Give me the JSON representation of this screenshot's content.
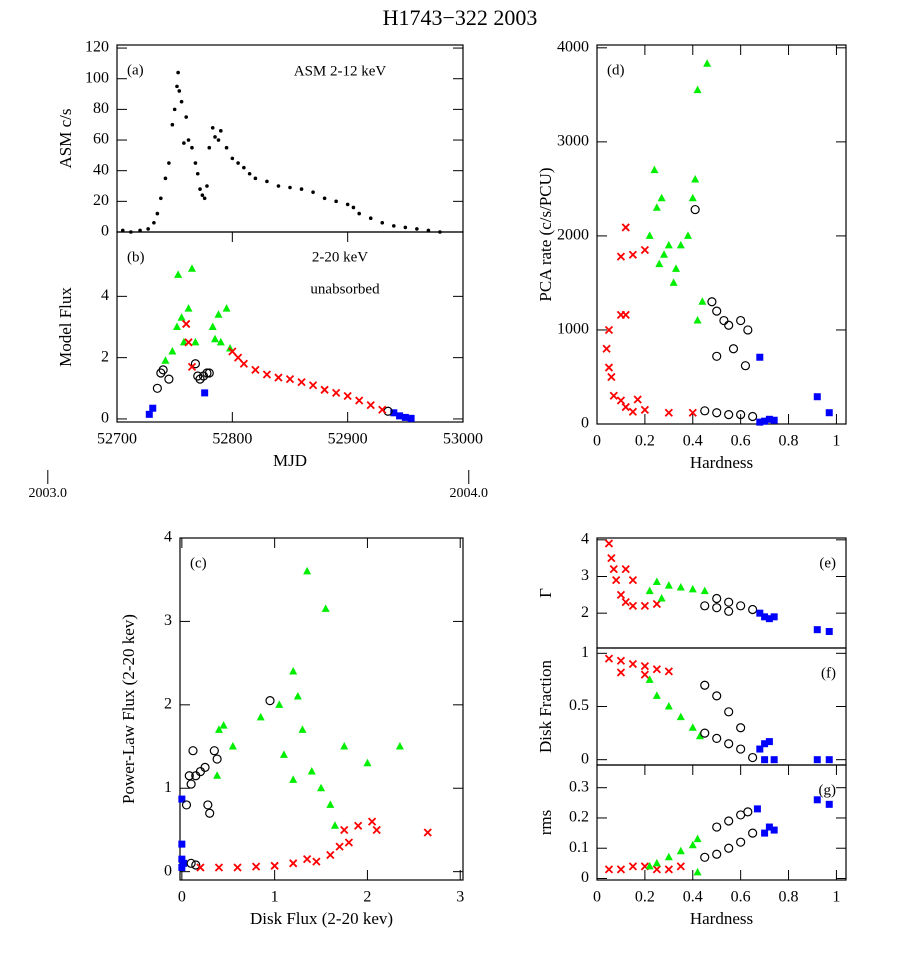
{
  "title": "H1743−322 2003",
  "chart_data": [
    {
      "type": "scatter",
      "panel_label": "(a)",
      "annotations": [
        "ASM 2-12 keV"
      ],
      "ylabel": "ASM c/s",
      "xlim": [
        52700,
        53000
      ],
      "ylim": [
        0,
        122
      ],
      "yticks": [
        0,
        20,
        40,
        60,
        80,
        100,
        120
      ],
      "series": [
        {
          "color": "#000000",
          "marker": "dot",
          "x": [
            52705,
            52712,
            52720,
            52727,
            52732,
            52735,
            52738,
            52742,
            52745,
            52748,
            52750,
            52752,
            52753,
            52754,
            52756,
            52758,
            52760,
            52762,
            52765,
            52768,
            52770,
            52772,
            52774,
            52776,
            52778,
            52780,
            52783,
            52785,
            52788,
            52790,
            52795,
            52800,
            52805,
            52810,
            52815,
            52820,
            52830,
            52840,
            52850,
            52860,
            52870,
            52880,
            52890,
            52900,
            52905,
            52910,
            52920,
            52930,
            52940,
            52950,
            52960,
            52970,
            52980
          ],
          "values": [
            1,
            0,
            1,
            2,
            6,
            12,
            22,
            35,
            45,
            70,
            80,
            95,
            104,
            92,
            85,
            58,
            75,
            60,
            55,
            45,
            38,
            28,
            24,
            22,
            30,
            55,
            68,
            62,
            60,
            66,
            55,
            48,
            45,
            42,
            38,
            35,
            33,
            30,
            29,
            28,
            26,
            22,
            20,
            18,
            16,
            12,
            9,
            6,
            4,
            3,
            2,
            1,
            0
          ]
        }
      ]
    },
    {
      "type": "scatter",
      "panel_label": "(b)",
      "annotations": [
        "2-20 keV",
        "unabsorbed"
      ],
      "ylabel": "Model Flux",
      "xlabel": "MJD",
      "xlim": [
        52700,
        53000
      ],
      "ylim": [
        -0.1,
        6.1
      ],
      "xticks": [
        52700,
        52800,
        52900,
        53000
      ],
      "yticks": [
        0,
        2,
        4
      ],
      "year_ticks": [
        {
          "value": 52640,
          "label": "2003.0"
        },
        {
          "value": 53005,
          "label": "2004.0"
        }
      ],
      "series": [
        {
          "color": "#0000ff",
          "marker": "square",
          "x": [
            52728,
            52731,
            52776,
            52940,
            52945,
            52950,
            52955
          ],
          "values": [
            0.15,
            0.35,
            0.85,
            0.2,
            0.1,
            0.05,
            0.02
          ]
        },
        {
          "color": "#000000",
          "marker": "circle",
          "x": [
            52735,
            52738,
            52740,
            52745,
            52768,
            52770,
            52772,
            52775,
            52778,
            52780,
            52935
          ],
          "values": [
            1.0,
            1.5,
            1.6,
            1.3,
            1.8,
            1.4,
            1.3,
            1.4,
            1.5,
            1.5,
            0.25
          ]
        },
        {
          "color": "#00ee00",
          "marker": "triangle",
          "x": [
            52742,
            52748,
            52752,
            52753,
            52756,
            52758,
            52762,
            52765,
            52768,
            52783,
            52785,
            52788,
            52790,
            52795,
            52798
          ],
          "values": [
            1.9,
            2.2,
            3.0,
            4.7,
            3.3,
            2.5,
            3.6,
            4.9,
            2.5,
            3.0,
            2.6,
            3.4,
            2.5,
            3.6,
            2.3
          ]
        },
        {
          "color": "#ff0000",
          "marker": "cross",
          "x": [
            52760,
            52762,
            52765,
            52800,
            52805,
            52810,
            52820,
            52830,
            52840,
            52850,
            52860,
            52870,
            52880,
            52890,
            52900,
            52910,
            52920,
            52930
          ],
          "values": [
            3.1,
            2.5,
            1.7,
            2.2,
            2.0,
            1.8,
            1.6,
            1.45,
            1.35,
            1.3,
            1.2,
            1.1,
            0.95,
            0.85,
            0.75,
            0.6,
            0.45,
            0.3
          ]
        }
      ]
    },
    {
      "type": "scatter",
      "panel_label": "(c)",
      "annotations": [],
      "ylabel": "Power-Law Flux (2-20 kev)",
      "xlabel": "Disk Flux (2-20 kev)",
      "xlim": [
        -0.02,
        3.03
      ],
      "ylim": [
        -0.1,
        4
      ],
      "xticks": [
        0,
        1,
        2,
        3
      ],
      "yticks": [
        0,
        1,
        2,
        3,
        4
      ],
      "series": [
        {
          "color": "#0000ff",
          "marker": "square",
          "x": [
            0,
            0,
            0,
            0,
            0.02
          ],
          "values": [
            0.87,
            0.33,
            0.15,
            0.05,
            0.1
          ]
        },
        {
          "color": "#000000",
          "marker": "circle",
          "x": [
            0.05,
            0.08,
            0.1,
            0.12,
            0.15,
            0.2,
            0.25,
            0.28,
            0.3,
            0.35,
            0.38,
            0.95,
            0.1,
            0.15
          ],
          "values": [
            0.8,
            1.15,
            1.05,
            1.45,
            1.15,
            1.2,
            1.25,
            0.8,
            0.7,
            1.45,
            1.35,
            2.05,
            0.1,
            0.08
          ]
        },
        {
          "color": "#00ee00",
          "marker": "triangle",
          "x": [
            0.38,
            0.4,
            0.45,
            0.55,
            0.85,
            1.05,
            1.2,
            1.25,
            1.35,
            1.55,
            1.3,
            1.4,
            1.5,
            1.6,
            1.65,
            1.75,
            2.0,
            2.35,
            1.1,
            1.2
          ],
          "values": [
            1.15,
            1.7,
            1.75,
            1.5,
            1.85,
            2.0,
            2.4,
            2.1,
            3.6,
            3.15,
            1.7,
            1.2,
            1.0,
            0.8,
            0.55,
            1.5,
            1.3,
            1.5,
            1.4,
            1.1
          ]
        },
        {
          "color": "#ff0000",
          "marker": "cross",
          "x": [
            0.2,
            0.4,
            0.6,
            0.8,
            1.0,
            1.2,
            1.35,
            1.45,
            1.6,
            1.7,
            1.75,
            1.9,
            2.05,
            2.1,
            2.65,
            1.8
          ],
          "values": [
            0.05,
            0.05,
            0.05,
            0.06,
            0.07,
            0.1,
            0.15,
            0.12,
            0.2,
            0.3,
            0.5,
            0.55,
            0.6,
            0.5,
            0.47,
            0.35
          ]
        }
      ]
    },
    {
      "type": "scatter",
      "panel_label": "(d)",
      "annotations": [],
      "ylabel": "PCA rate (c/s/PCU)",
      "xlabel": "Hardness",
      "xlim": [
        0,
        1.04
      ],
      "ylim": [
        0,
        4030
      ],
      "xticks": [
        0,
        0.2,
        0.4,
        0.6,
        0.8,
        1
      ],
      "yticks": [
        0,
        1000,
        2000,
        3000,
        4000
      ],
      "series": [
        {
          "color": "#ff0000",
          "marker": "cross",
          "x": [
            0.12,
            0.1,
            0.15,
            0.2,
            0.1,
            0.12,
            0.05,
            0.04,
            0.05,
            0.06,
            0.07,
            0.1,
            0.12,
            0.2,
            0.3,
            0.4,
            0.17,
            0.15
          ],
          "values": [
            2090,
            1780,
            1800,
            1850,
            1160,
            1160,
            1000,
            800,
            600,
            500,
            300,
            250,
            180,
            150,
            120,
            120,
            260,
            130
          ]
        },
        {
          "color": "#00ee00",
          "marker": "triangle",
          "x": [
            0.22,
            0.24,
            0.25,
            0.26,
            0.28,
            0.3,
            0.32,
            0.35,
            0.38,
            0.4,
            0.41,
            0.42,
            0.46,
            0.44,
            0.27,
            0.33,
            0.42
          ],
          "values": [
            2000,
            2700,
            2300,
            1700,
            1800,
            1900,
            1500,
            1900,
            2000,
            2400,
            2600,
            3550,
            3830,
            1300,
            2400,
            1650,
            1100
          ]
        },
        {
          "color": "#000000",
          "marker": "circle",
          "x": [
            0.41,
            0.48,
            0.5,
            0.5,
            0.53,
            0.55,
            0.57,
            0.6,
            0.62,
            0.63,
            0.45,
            0.5,
            0.55,
            0.6,
            0.65
          ],
          "values": [
            2280,
            1300,
            1200,
            720,
            1100,
            1050,
            800,
            1100,
            620,
            1000,
            140,
            120,
            100,
            100,
            80
          ]
        },
        {
          "color": "#0000ff",
          "marker": "square",
          "x": [
            0.68,
            0.92,
            0.97,
            0.68,
            0.7,
            0.72,
            0.74
          ],
          "values": [
            710,
            290,
            120,
            20,
            30,
            50,
            40
          ]
        }
      ]
    },
    {
      "type": "scatter",
      "panel_label": "(e)",
      "annotations": [],
      "ylabel": "Γ",
      "xlim": [
        0,
        1.04
      ],
      "ylim": [
        1.05,
        4.05
      ],
      "yticks": [
        2,
        3,
        4
      ],
      "series": [
        {
          "color": "#ff0000",
          "marker": "cross",
          "x": [
            0.05,
            0.06,
            0.07,
            0.08,
            0.1,
            0.12,
            0.15,
            0.2,
            0.15,
            0.12,
            0.25
          ],
          "values": [
            3.9,
            3.5,
            3.2,
            2.9,
            2.5,
            2.3,
            2.2,
            2.2,
            2.9,
            3.2,
            2.25
          ]
        },
        {
          "color": "#00ee00",
          "marker": "triangle",
          "x": [
            0.22,
            0.25,
            0.3,
            0.35,
            0.4,
            0.45,
            0.27
          ],
          "values": [
            2.6,
            2.85,
            2.75,
            2.7,
            2.65,
            2.6,
            2.4
          ]
        },
        {
          "color": "#000000",
          "marker": "circle",
          "x": [
            0.45,
            0.5,
            0.55,
            0.6,
            0.65,
            0.5,
            0.55
          ],
          "values": [
            2.2,
            2.4,
            2.3,
            2.2,
            2.1,
            2.15,
            2.05
          ]
        },
        {
          "color": "#0000ff",
          "marker": "square",
          "x": [
            0.68,
            0.7,
            0.72,
            0.74,
            0.92,
            0.97
          ],
          "values": [
            2.0,
            1.9,
            1.85,
            1.9,
            1.55,
            1.5
          ]
        }
      ]
    },
    {
      "type": "scatter",
      "panel_label": "(f)",
      "annotations": [],
      "ylabel": "Disk Fraction",
      "xlim": [
        0,
        1.04
      ],
      "ylim": [
        -0.05,
        1.05
      ],
      "yticks": [
        0,
        0.5,
        1
      ],
      "series": [
        {
          "color": "#ff0000",
          "marker": "cross",
          "x": [
            0.05,
            0.1,
            0.15,
            0.2,
            0.25,
            0.3,
            0.1,
            0.2
          ],
          "values": [
            0.95,
            0.93,
            0.9,
            0.88,
            0.85,
            0.83,
            0.82,
            0.8
          ]
        },
        {
          "color": "#00ee00",
          "marker": "triangle",
          "x": [
            0.22,
            0.25,
            0.3,
            0.35,
            0.4,
            0.43
          ],
          "values": [
            0.75,
            0.6,
            0.5,
            0.4,
            0.3,
            0.22
          ]
        },
        {
          "color": "#000000",
          "marker": "circle",
          "x": [
            0.45,
            0.5,
            0.55,
            0.6,
            0.45,
            0.5,
            0.55,
            0.6,
            0.65
          ],
          "values": [
            0.7,
            0.6,
            0.45,
            0.3,
            0.25,
            0.2,
            0.15,
            0.1,
            0.02
          ]
        },
        {
          "color": "#0000ff",
          "marker": "square",
          "x": [
            0.68,
            0.7,
            0.72,
            0.7,
            0.74,
            0.92,
            0.97
          ],
          "values": [
            0.1,
            0.15,
            0.17,
            0.0,
            0.0,
            0.0,
            0.0
          ]
        }
      ]
    },
    {
      "type": "scatter",
      "panel_label": "(g)",
      "annotations": [],
      "ylabel": "rms",
      "xlabel": "Hardness",
      "xlim": [
        0,
        1.04
      ],
      "ylim": [
        -0.005,
        0.375
      ],
      "xticks": [
        0,
        0.2,
        0.4,
        0.6,
        0.8,
        1
      ],
      "yticks": [
        0,
        0.1,
        0.2,
        0.3
      ],
      "series": [
        {
          "color": "#ff0000",
          "marker": "cross",
          "x": [
            0.05,
            0.1,
            0.15,
            0.2,
            0.25,
            0.3,
            0.35
          ],
          "values": [
            0.03,
            0.03,
            0.04,
            0.04,
            0.03,
            0.03,
            0.04
          ]
        },
        {
          "color": "#00ee00",
          "marker": "triangle",
          "x": [
            0.22,
            0.25,
            0.3,
            0.35,
            0.4,
            0.42,
            0.42
          ],
          "values": [
            0.04,
            0.05,
            0.07,
            0.09,
            0.11,
            0.13,
            0.02
          ]
        },
        {
          "color": "#000000",
          "marker": "circle",
          "x": [
            0.45,
            0.5,
            0.55,
            0.6,
            0.63,
            0.5,
            0.55,
            0.6,
            0.65
          ],
          "values": [
            0.07,
            0.17,
            0.19,
            0.21,
            0.22,
            0.08,
            0.1,
            0.12,
            0.15
          ]
        },
        {
          "color": "#0000ff",
          "marker": "square",
          "x": [
            0.67,
            0.7,
            0.72,
            0.74,
            0.92,
            0.97
          ],
          "values": [
            0.23,
            0.15,
            0.17,
            0.16,
            0.26,
            0.245
          ]
        }
      ]
    }
  ]
}
